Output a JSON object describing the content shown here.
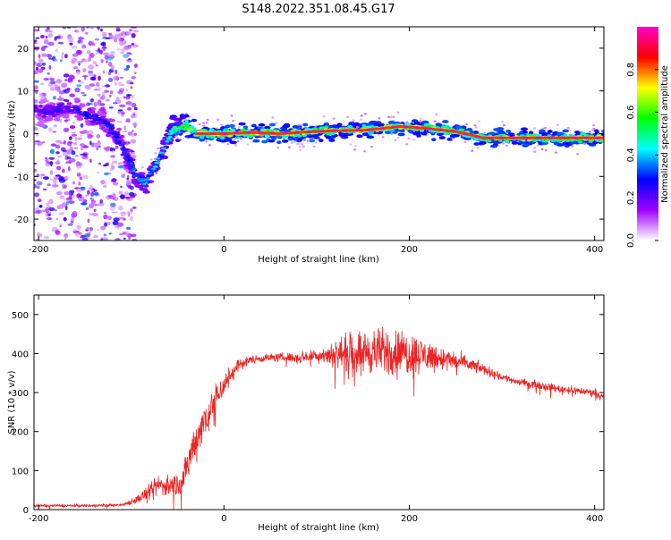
{
  "title": "S148.2022.351.08.45.G17",
  "chart_data": [
    {
      "type": "heatmap",
      "xlabel": "Height of straight line (km)",
      "ylabel": "Frequency (Hz)",
      "xlim": [
        -205,
        410
      ],
      "ylim": [
        -25,
        25
      ],
      "x_ticks": [
        -200,
        0,
        200,
        400
      ],
      "y_ticks": [
        -20,
        -10,
        0,
        10,
        20
      ],
      "colorbar": {
        "label": "Normalized spectral amplitude",
        "range": [
          0,
          1
        ],
        "ticks": [
          "0.0",
          "0.2",
          "0.4",
          "0.6",
          "0.8"
        ],
        "colors": [
          "#ffffff",
          "#a000ff",
          "#0000ff",
          "#00ffff",
          "#00ff00",
          "#ffff00",
          "#ff0000",
          "#ff00c8"
        ]
      },
      "ridge": {
        "x": [
          -205,
          -190,
          -175,
          -160,
          -145,
          -130,
          -118,
          -105,
          -95,
          -85,
          -78,
          -70,
          -62,
          -55,
          -45,
          -38,
          -30,
          0,
          30,
          60,
          90,
          120,
          150,
          170,
          190,
          220,
          250,
          280,
          300,
          350,
          410
        ],
        "y": [
          6,
          5,
          6,
          5.5,
          4,
          3,
          0,
          -5,
          -10,
          -11.5,
          -9,
          -6,
          -2,
          1,
          1.5,
          1.5,
          0,
          0,
          0.3,
          0,
          0.4,
          0.7,
          0.8,
          1.2,
          1.7,
          1.2,
          0.5,
          -1,
          -1,
          -1,
          -1
        ],
        "peak_amplitude": [
          0.25,
          0.3,
          0.3,
          0.3,
          0.35,
          0.35,
          0.4,
          0.4,
          0.45,
          0.5,
          0.5,
          0.55,
          0.6,
          0.65,
          0.7,
          0.85,
          0.9,
          0.9,
          0.9,
          0.9,
          0.9,
          0.9,
          0.9,
          0.9,
          0.9,
          0.9,
          0.9,
          0.9,
          0.9,
          0.9,
          0.9
        ]
      },
      "noise_region_x": [
        -205,
        -120
      ]
    },
    {
      "type": "line",
      "xlabel": "Height of straight line (km)",
      "ylabel": "SNR (10 * v/v)",
      "xlim": [
        -205,
        410
      ],
      "ylim": [
        0,
        550
      ],
      "x_ticks": [
        -200,
        0,
        200,
        400
      ],
      "y_ticks": [
        0,
        100,
        200,
        300,
        400,
        500
      ],
      "series": [
        {
          "color": "#ee2222",
          "envelope_x": [
            -205,
            -150,
            -110,
            -95,
            -80,
            -70,
            -60,
            -45,
            -35,
            -25,
            -15,
            0,
            15,
            30,
            50,
            80,
            100,
            120,
            140,
            160,
            180,
            200,
            220,
            240,
            260,
            280,
            300,
            320,
            340,
            360,
            380,
            400,
            410
          ],
          "mean": [
            10,
            10,
            12,
            25,
            45,
            65,
            60,
            70,
            150,
            210,
            260,
            320,
            370,
            385,
            390,
            390,
            395,
            400,
            405,
            405,
            405,
            400,
            395,
            385,
            375,
            360,
            340,
            325,
            320,
            310,
            305,
            300,
            290
          ],
          "spread": [
            5,
            5,
            5,
            15,
            30,
            40,
            40,
            50,
            70,
            80,
            70,
            50,
            25,
            15,
            15,
            20,
            25,
            50,
            75,
            85,
            90,
            85,
            60,
            40,
            30,
            20,
            15,
            15,
            15,
            15,
            15,
            15,
            15
          ]
        }
      ]
    }
  ]
}
